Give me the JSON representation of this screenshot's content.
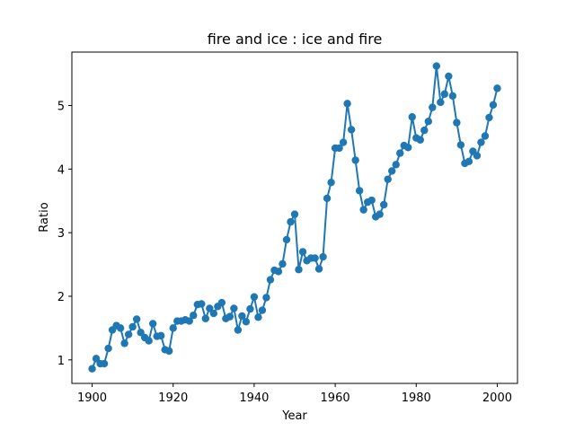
{
  "chart_data": {
    "type": "line",
    "title": "fire and ice : ice and fire",
    "xlabel": "Year",
    "ylabel": "Ratio",
    "xlim": [
      1895,
      2005
    ],
    "ylim": [
      0.63,
      5.84
    ],
    "xticks": [
      1900,
      1920,
      1940,
      1960,
      1980,
      2000
    ],
    "yticks": [
      1,
      2,
      3,
      4,
      5
    ],
    "grid": false,
    "marker": "circle",
    "color": "#1f77b4",
    "series": [
      {
        "x": [
          1900,
          1901,
          1902,
          1903,
          1904,
          1905,
          1906,
          1907,
          1908,
          1909,
          1910,
          1911,
          1912,
          1913,
          1914,
          1915,
          1916,
          1917,
          1918,
          1919,
          1920,
          1921,
          1922,
          1923,
          1924,
          1925,
          1926,
          1927,
          1928,
          1929,
          1930,
          1931,
          1932,
          1933,
          1934,
          1935,
          1936,
          1937,
          1938,
          1939,
          1940,
          1941,
          1942,
          1943,
          1944,
          1945,
          1946,
          1947,
          1948,
          1949,
          1950,
          1951,
          1952,
          1953,
          1954,
          1955,
          1956,
          1957,
          1958,
          1959,
          1960,
          1961,
          1962,
          1963,
          1964,
          1965,
          1966,
          1967,
          1968,
          1969,
          1970,
          1971,
          1972,
          1973,
          1974,
          1975,
          1976,
          1977,
          1978,
          1979,
          1980,
          1981,
          1982,
          1983,
          1984,
          1985,
          1986,
          1987,
          1988,
          1989,
          1990,
          1991,
          1992,
          1993,
          1994,
          1995,
          1996,
          1997,
          1998,
          1999,
          2000
        ],
        "values": [
          0.86,
          1.02,
          0.94,
          0.94,
          1.18,
          1.47,
          1.54,
          1.5,
          1.26,
          1.4,
          1.52,
          1.64,
          1.43,
          1.35,
          1.3,
          1.57,
          1.37,
          1.38,
          1.16,
          1.14,
          1.5,
          1.61,
          1.61,
          1.63,
          1.61,
          1.7,
          1.87,
          1.88,
          1.65,
          1.81,
          1.73,
          1.84,
          1.9,
          1.65,
          1.68,
          1.81,
          1.47,
          1.69,
          1.6,
          1.8,
          1.99,
          1.67,
          1.78,
          1.98,
          2.26,
          2.41,
          2.39,
          2.51,
          2.89,
          3.17,
          3.29,
          2.42,
          2.7,
          2.56,
          2.6,
          2.6,
          2.43,
          2.62,
          3.54,
          3.79,
          4.33,
          4.33,
          4.42,
          5.03,
          4.62,
          4.14,
          3.66,
          3.36,
          3.48,
          3.51,
          3.25,
          3.29,
          3.44,
          3.84,
          3.97,
          4.07,
          4.25,
          4.37,
          4.34,
          4.82,
          4.49,
          4.46,
          4.61,
          4.75,
          4.97,
          5.62,
          5.05,
          5.18,
          5.46,
          5.15,
          4.73,
          4.38,
          4.09,
          4.12,
          4.28,
          4.21,
          4.42,
          4.52,
          4.81,
          5.01,
          5.27
        ]
      }
    ]
  }
}
